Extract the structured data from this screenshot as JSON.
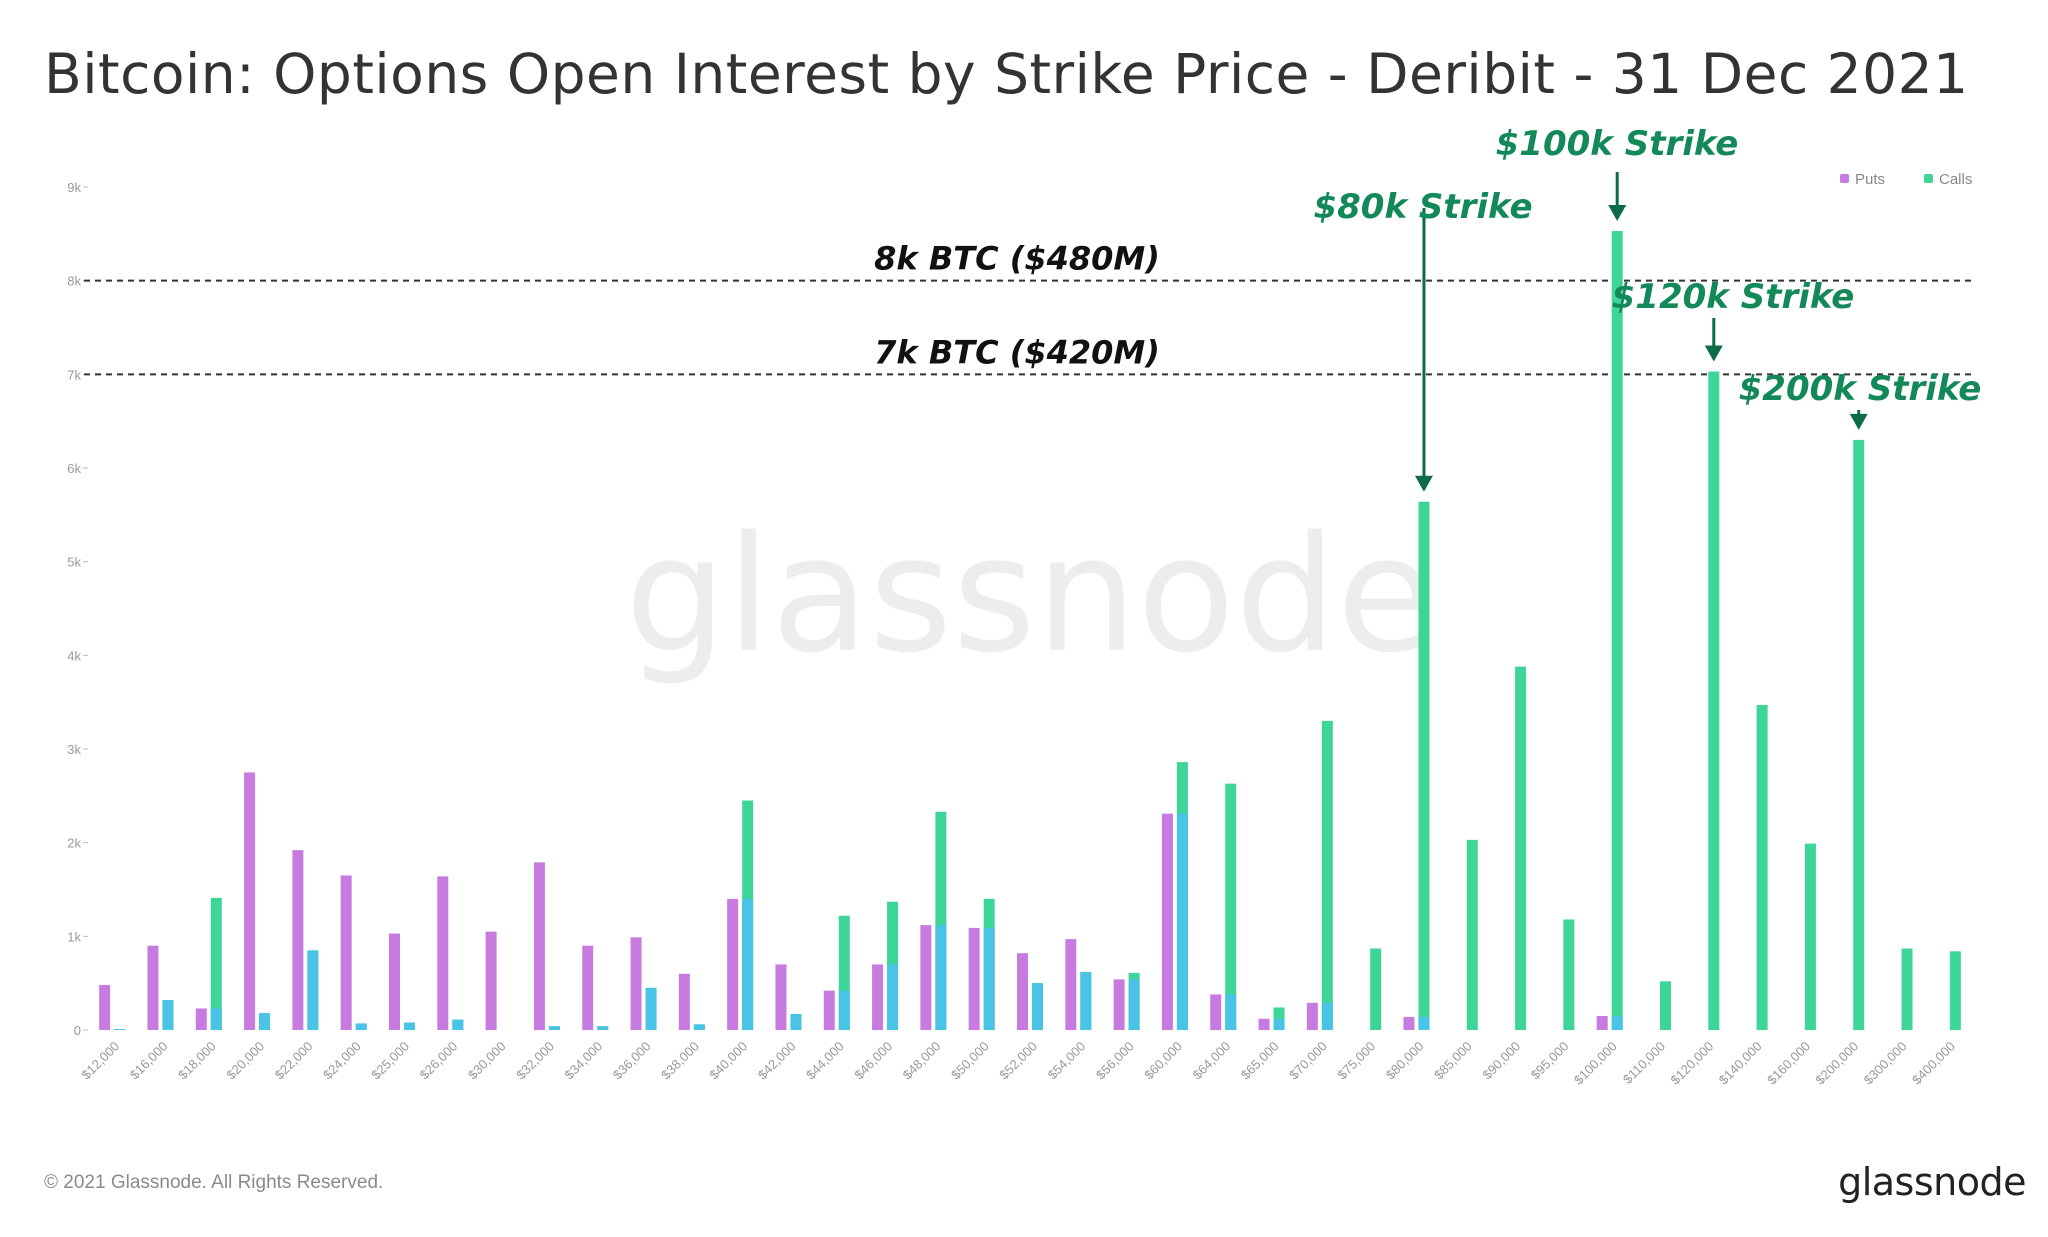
{
  "header": {
    "title": "Bitcoin: Options Open Interest by Strike Price - Deribit - 31 Dec 2021"
  },
  "footer": {
    "copyright": "© 2021 Glassnode. All Rights Reserved.",
    "logo": "glassnode"
  },
  "watermark": "glassnode",
  "chart_data": {
    "type": "bar",
    "title": "Bitcoin: Options Open Interest by Strike Price - Deribit - 31 Dec 2021",
    "xlabel": "",
    "ylabel": "",
    "ylim": [
      0,
      9000
    ],
    "y_ticks": [
      0,
      1000,
      2000,
      3000,
      4000,
      5000,
      6000,
      7000,
      8000,
      9000
    ],
    "y_tick_labels": [
      "0",
      "1k",
      "2k",
      "3k",
      "4k",
      "5k",
      "6k",
      "7k",
      "8k",
      "9k"
    ],
    "grid": false,
    "legend_position": "top-right",
    "categories": [
      "$12,000",
      "$16,000",
      "$18,000",
      "$20,000",
      "$22,000",
      "$24,000",
      "$25,000",
      "$26,000",
      "$30,000",
      "$32,000",
      "$34,000",
      "$36,000",
      "$38,000",
      "$40,000",
      "$42,000",
      "$44,000",
      "$46,000",
      "$48,000",
      "$50,000",
      "$52,000",
      "$54,000",
      "$56,000",
      "$60,000",
      "$64,000",
      "$65,000",
      "$70,000",
      "$75,000",
      "$80,000",
      "$85,000",
      "$90,000",
      "$95,000",
      "$100,000",
      "$110,000",
      "$120,000",
      "$140,000",
      "$160,000",
      "$200,000",
      "$300,000",
      "$400,000"
    ],
    "series": [
      {
        "name": "Puts",
        "color": "#c77be0",
        "values": [
          480,
          900,
          230,
          2750,
          1920,
          1650,
          1030,
          1640,
          1050,
          1790,
          900,
          990,
          600,
          1400,
          700,
          420,
          700,
          1120,
          1090,
          820,
          970,
          540,
          2310,
          380,
          120,
          290,
          0,
          140,
          0,
          0,
          0,
          150,
          0,
          0,
          0,
          0,
          0,
          0,
          0
        ]
      },
      {
        "name": "Calls",
        "color": "#3ed598",
        "values": [
          10,
          320,
          1410,
          180,
          850,
          70,
          80,
          110,
          0,
          40,
          40,
          450,
          60,
          2450,
          170,
          1220,
          1370,
          2330,
          1400,
          500,
          620,
          610,
          2860,
          2630,
          240,
          3300,
          870,
          5640,
          2030,
          3880,
          1180,
          8530,
          520,
          7030,
          3470,
          1990,
          6300,
          870,
          840
        ]
      }
    ],
    "reference_lines": [
      {
        "value": 8000,
        "label": "8k BTC ($480M)"
      },
      {
        "value": 7000,
        "label": "7k BTC ($420M)"
      }
    ],
    "annotations": [
      {
        "label": "$80k Strike",
        "category": "$80,000"
      },
      {
        "label": "$100k Strike",
        "category": "$100,000"
      },
      {
        "label": "$120k Strike",
        "category": "$120,000"
      },
      {
        "label": "$200k Strike",
        "category": "$200,000"
      }
    ]
  }
}
